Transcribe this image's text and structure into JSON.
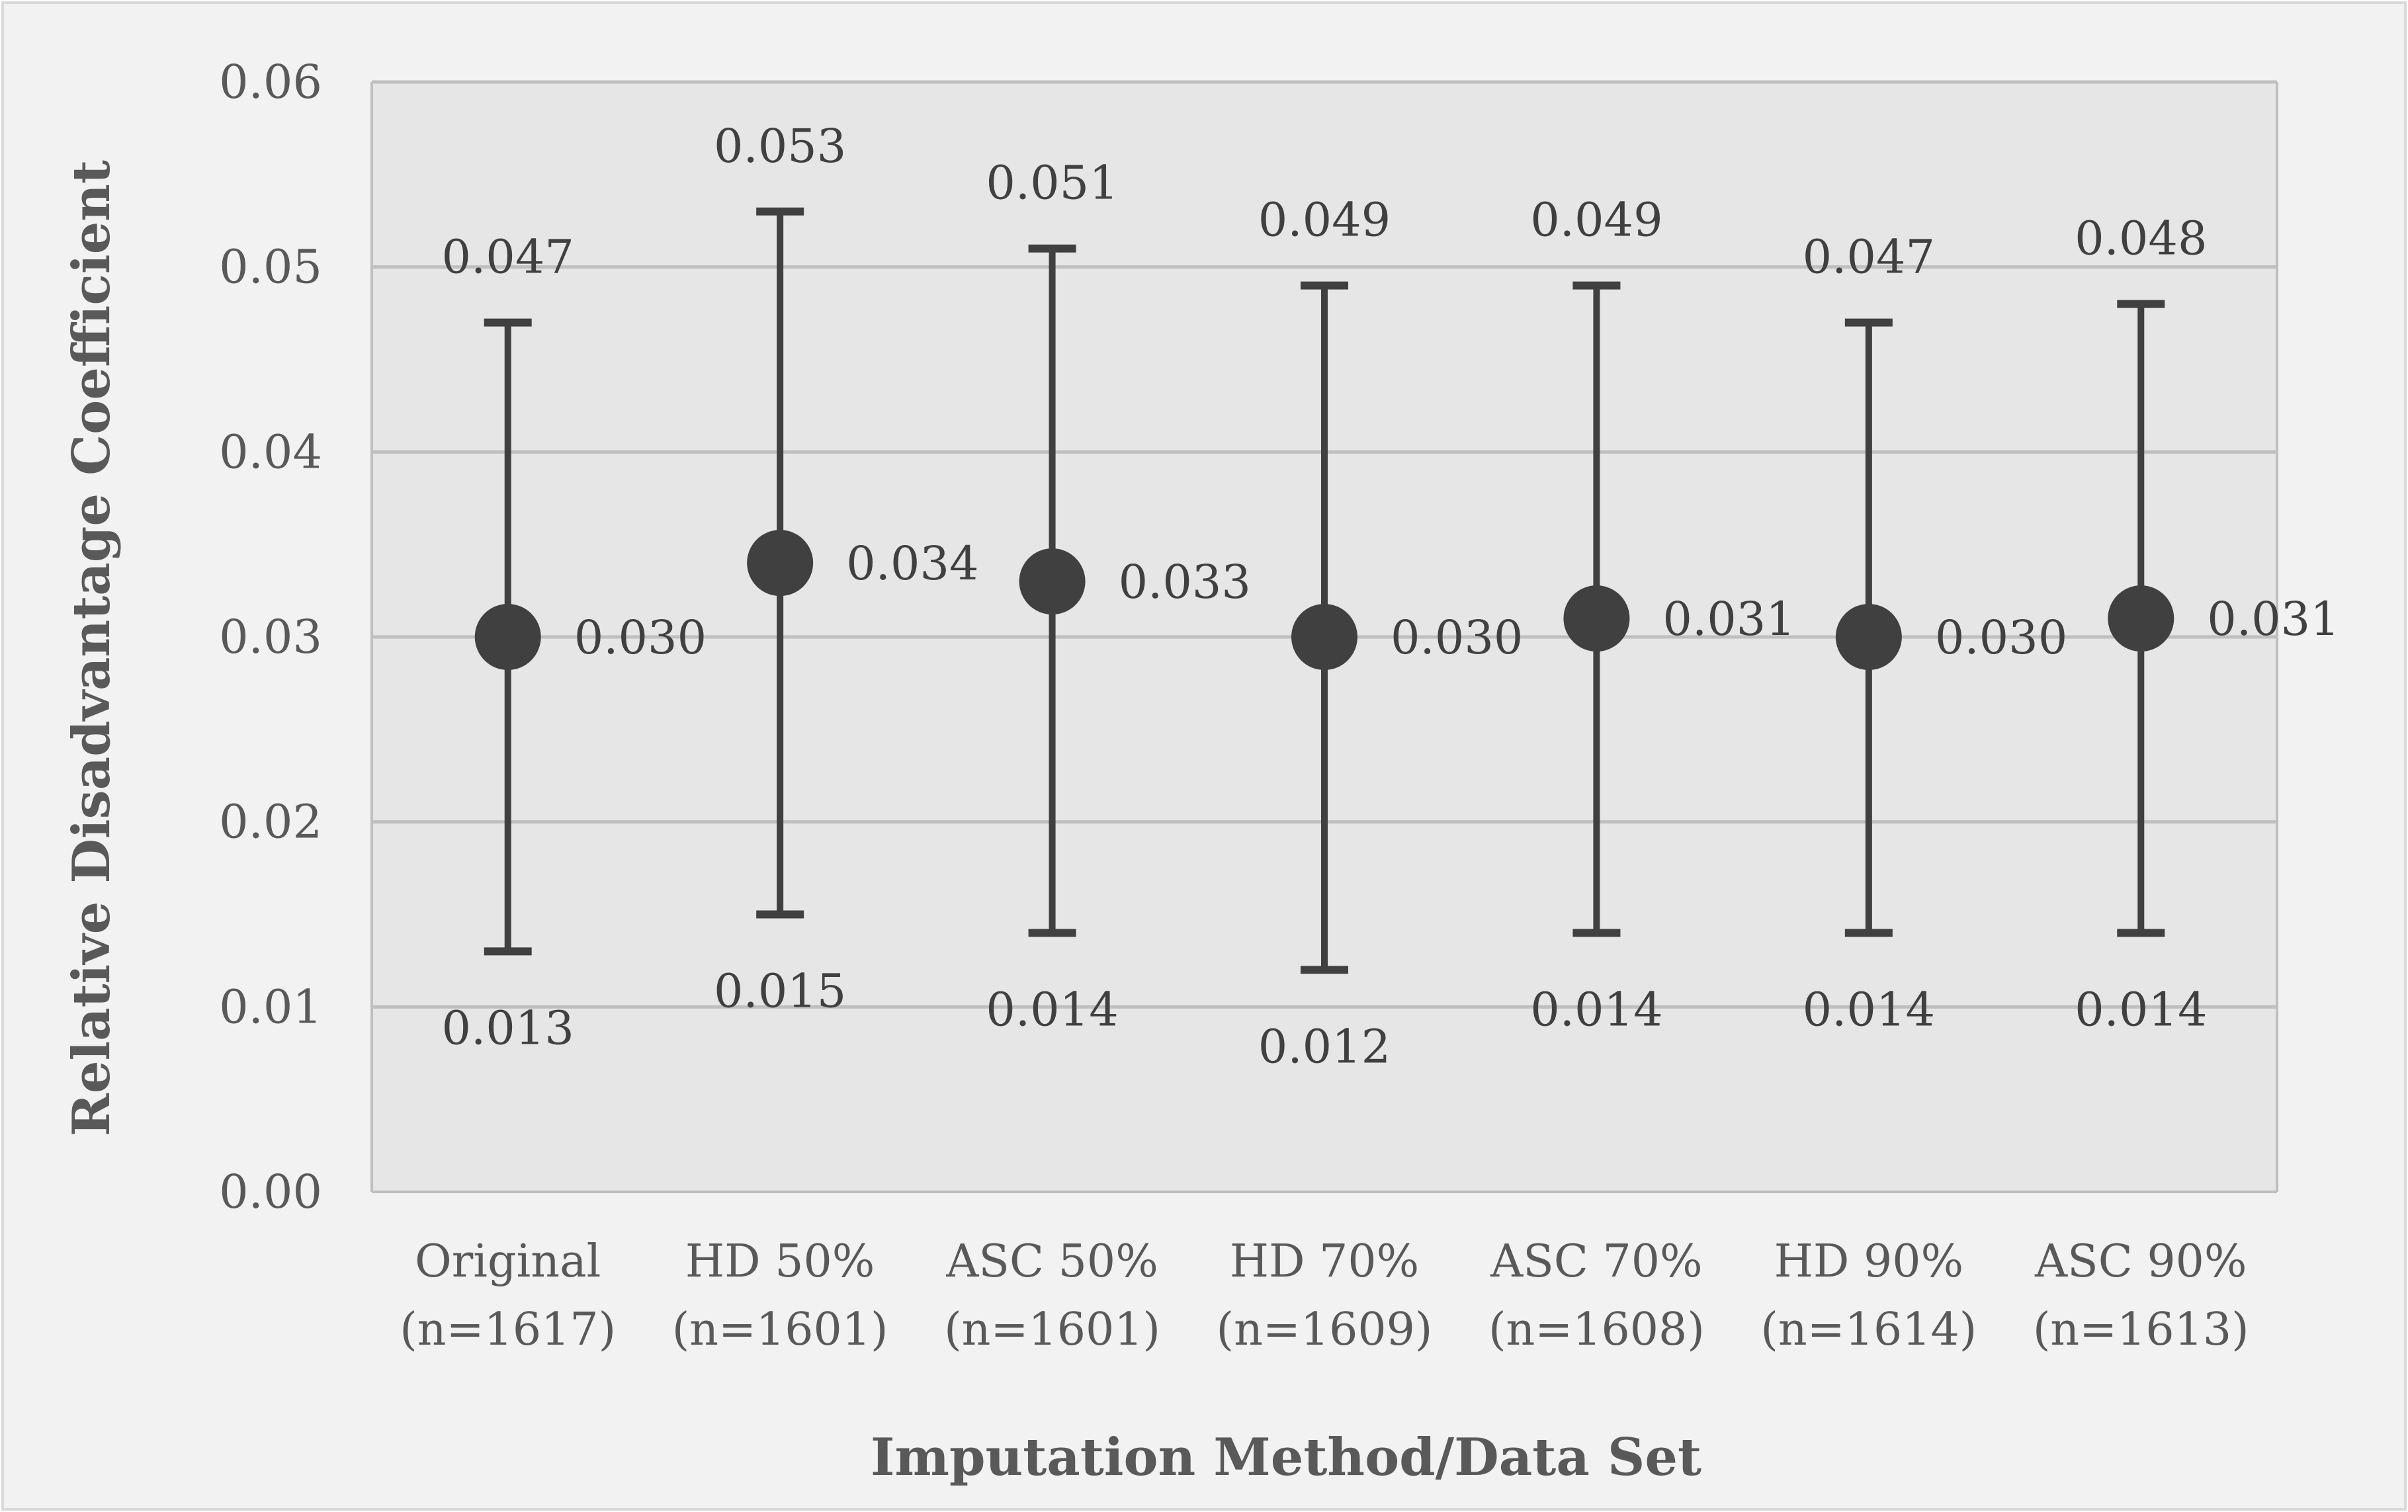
{
  "chart_data": {
    "type": "scatter",
    "xlabel": "Imputation Method/Data Set",
    "ylabel": "Relative Disadvantage Coefficient",
    "ylim": [
      0,
      0.06
    ],
    "yticks": [
      "0.00",
      "0.01",
      "0.02",
      "0.03",
      "0.04",
      "0.05",
      "0.06"
    ],
    "grid": true,
    "categories": [
      [
        "Original",
        "(n=1617)"
      ],
      [
        "HD 50%",
        "(n=1601)"
      ],
      [
        "ASC 50%",
        "(n=1601)"
      ],
      [
        "HD 70%",
        "(n=1609)"
      ],
      [
        "ASC 70%",
        "(n=1608)"
      ],
      [
        "HD 90%",
        "(n=1614)"
      ],
      [
        "ASC 90%",
        "(n=1613)"
      ]
    ],
    "values": [
      0.03,
      0.034,
      0.033,
      0.03,
      0.031,
      0.03,
      0.031
    ],
    "upper": [
      0.047,
      0.053,
      0.051,
      0.049,
      0.049,
      0.047,
      0.048
    ],
    "lower": [
      0.013,
      0.015,
      0.014,
      0.012,
      0.014,
      0.014,
      0.014
    ],
    "value_labels": [
      "0.030",
      "0.034",
      "0.033",
      "0.030",
      "0.031",
      "0.030",
      "0.031"
    ],
    "upper_labels": [
      "0.047",
      "0.053",
      "0.051",
      "0.049",
      "0.049",
      "0.047",
      "0.048"
    ],
    "lower_labels": [
      "0.013",
      "0.015",
      "0.014",
      "0.012",
      "0.014",
      "0.014",
      "0.014"
    ],
    "colors": {
      "outer_background": "#f2f2f2",
      "plot_background": "#e6e6e6",
      "gridline": "#bfbfbf",
      "marker": "#404040"
    }
  }
}
